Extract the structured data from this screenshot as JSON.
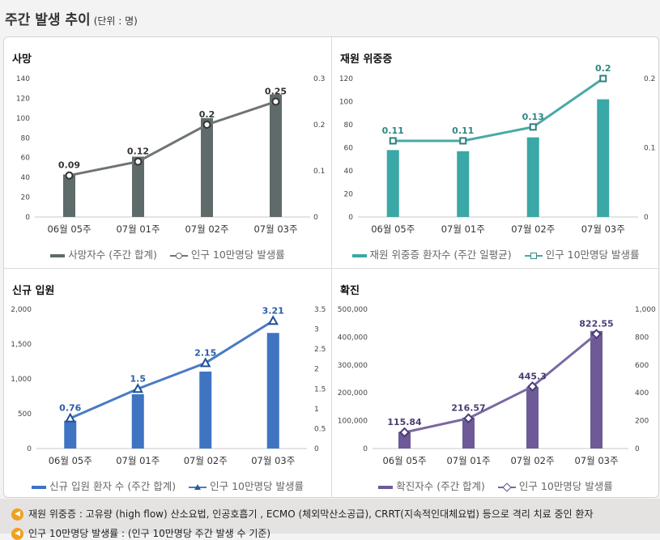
{
  "header": {
    "title": "주간 발생 추이",
    "unit": "(단위 : 명)"
  },
  "chart_data": [
    {
      "id": "death",
      "type": "bar",
      "title": "사망",
      "categories": [
        "06월 05주",
        "07월 01주",
        "07월 02주",
        "07월 03주"
      ],
      "series": [
        {
          "name": "사망자수 (주간 합계)",
          "type": "bar",
          "axis": "left",
          "values": [
            43,
            61,
            100,
            124
          ]
        },
        {
          "name": "인구 10만명당 발생률",
          "type": "line",
          "axis": "right",
          "values": [
            0.09,
            0.12,
            0.2,
            0.25
          ]
        }
      ],
      "y_ticks": [
        "0",
        "20",
        "40",
        "60",
        "80",
        "100",
        "120",
        "140"
      ],
      "y2_ticks": [
        "0",
        "0.1",
        "0.2",
        "0.3"
      ],
      "ylim": [
        0,
        140
      ],
      "y2lim": [
        0,
        0.3
      ],
      "bar_color": "#5f6b6b",
      "line_color": "#6e7474",
      "marker": "circle"
    },
    {
      "id": "severe",
      "type": "bar",
      "title": "재원 위중증",
      "categories": [
        "06월 05주",
        "07월 01주",
        "07월 02주",
        "07월 03주"
      ],
      "series": [
        {
          "name": "재원 위중증 환자수 (주간 일평균)",
          "type": "bar",
          "axis": "left",
          "values": [
            58,
            57,
            69,
            102
          ]
        },
        {
          "name": "인구 10만명당 발생률",
          "type": "line",
          "axis": "right",
          "values": [
            0.11,
            0.11,
            0.13,
            0.2
          ]
        }
      ],
      "y_ticks": [
        "0",
        "20",
        "40",
        "60",
        "80",
        "100",
        "120"
      ],
      "y2_ticks": [
        "0",
        "0.1",
        "0.2"
      ],
      "ylim": [
        0,
        120
      ],
      "y2lim": [
        0,
        0.2
      ],
      "bar_color": "#3aa8a6",
      "line_color": "#4aa9a6",
      "marker": "square"
    },
    {
      "id": "admission",
      "type": "bar",
      "title": "신규 입원",
      "categories": [
        "06월 05주",
        "07월 01주",
        "07월 02주",
        "07월 03주"
      ],
      "series": [
        {
          "name": "신규 입원 환자 수 (주간 합계)",
          "type": "bar",
          "axis": "left",
          "values": [
            400,
            780,
            1105,
            1660
          ]
        },
        {
          "name": "인구 10만명당 발생률",
          "type": "line",
          "axis": "right",
          "values": [
            0.76,
            1.5,
            2.15,
            3.21
          ]
        }
      ],
      "y_ticks": [
        "0",
        "500",
        "1,000",
        "1,500",
        "2,000"
      ],
      "y2_ticks": [
        "0",
        "0.5",
        "1",
        "1.5",
        "2",
        "2.5",
        "3",
        "3.5"
      ],
      "ylim": [
        0,
        2000
      ],
      "y2lim": [
        0,
        3.5
      ],
      "bar_color": "#3f74c2",
      "line_color": "#4a7bc4",
      "marker": "triangle"
    },
    {
      "id": "confirmed",
      "type": "bar",
      "title": "확진",
      "categories": [
        "06월 05주",
        "07월 01주",
        "07월 02주",
        "07월 03주"
      ],
      "series": [
        {
          "name": "확진자수 (주간 합계)",
          "type": "bar",
          "axis": "left",
          "values": [
            60000,
            111000,
            221000,
            422000
          ]
        },
        {
          "name": "인구 10만명당 발생률",
          "type": "line",
          "axis": "right",
          "values": [
            115.84,
            216.57,
            445.3,
            822.55
          ]
        }
      ],
      "y_ticks": [
        "0",
        "100,000",
        "200,000",
        "300,000",
        "400,000",
        "500,000"
      ],
      "y2_ticks": [
        "0",
        "200",
        "400",
        "600",
        "800",
        "1,000"
      ],
      "ylim": [
        0,
        500000
      ],
      "y2lim": [
        0,
        1000
      ],
      "bar_color": "#6d5a96",
      "line_color": "#7a68a0",
      "marker": "diamond"
    }
  ],
  "notes": [
    "재원 위중증 : 고유량 (high flow) 산소요법, 인공호흡기 , ECMO (체외막산소공급), CRRT(지속적인대체요법) 등으로 격리 치료 중인 환자",
    "인구 10만명당 발생률 : (인구 10만명당 주간 발생 수 기준)"
  ]
}
